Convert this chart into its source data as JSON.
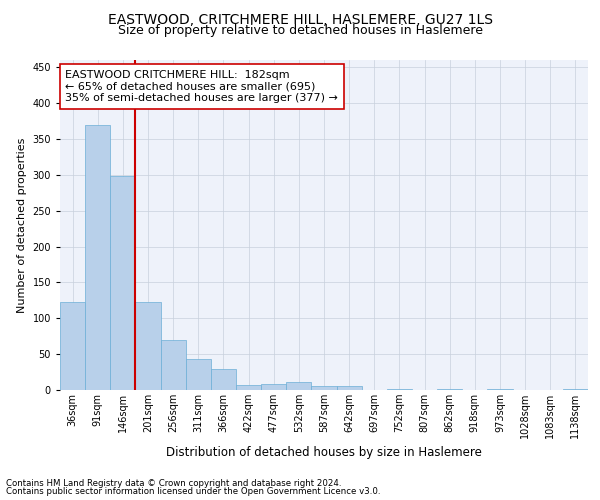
{
  "title1": "EASTWOOD, CRITCHMERE HILL, HASLEMERE, GU27 1LS",
  "title2": "Size of property relative to detached houses in Haslemere",
  "xlabel": "Distribution of detached houses by size in Haslemere",
  "ylabel": "Number of detached properties",
  "bar_color": "#b8d0ea",
  "bar_edge_color": "#6baed6",
  "categories": [
    "36sqm",
    "91sqm",
    "146sqm",
    "201sqm",
    "256sqm",
    "311sqm",
    "366sqm",
    "422sqm",
    "477sqm",
    "532sqm",
    "587sqm",
    "642sqm",
    "697sqm",
    "752sqm",
    "807sqm",
    "862sqm",
    "918sqm",
    "973sqm",
    "1028sqm",
    "1083sqm",
    "1138sqm"
  ],
  "values": [
    123,
    370,
    298,
    123,
    70,
    43,
    29,
    7,
    9,
    11,
    5,
    6,
    0,
    2,
    0,
    2,
    0,
    2,
    0,
    0,
    2
  ],
  "ylim": [
    0,
    460
  ],
  "yticks": [
    0,
    50,
    100,
    150,
    200,
    250,
    300,
    350,
    400,
    450
  ],
  "vline_x_index": 2.5,
  "vline_color": "#cc0000",
  "annotation_text": "EASTWOOD CRITCHMERE HILL:  182sqm\n← 65% of detached houses are smaller (695)\n35% of semi-detached houses are larger (377) →",
  "annotation_box_color": "#ffffff",
  "annotation_box_edge": "#cc0000",
  "footer1": "Contains HM Land Registry data © Crown copyright and database right 2024.",
  "footer2": "Contains public sector information licensed under the Open Government Licence v3.0.",
  "bg_color": "#eef2fa",
  "title1_fontsize": 10,
  "title2_fontsize": 9,
  "xlabel_fontsize": 8.5,
  "ylabel_fontsize": 8,
  "tick_fontsize": 7,
  "annotation_fontsize": 8
}
